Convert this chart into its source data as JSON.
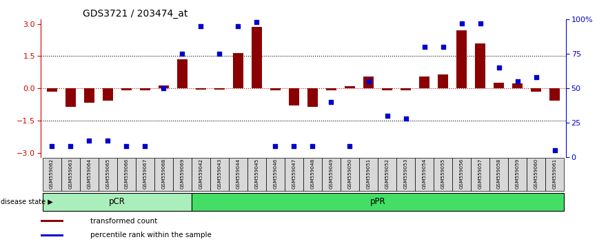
{
  "title": "GDS3721 / 203474_at",
  "samples": [
    "GSM559062",
    "GSM559063",
    "GSM559064",
    "GSM559065",
    "GSM559066",
    "GSM559067",
    "GSM559068",
    "GSM559069",
    "GSM559042",
    "GSM559043",
    "GSM559044",
    "GSM559045",
    "GSM559046",
    "GSM559047",
    "GSM559048",
    "GSM559049",
    "GSM559050",
    "GSM559051",
    "GSM559052",
    "GSM559053",
    "GSM559054",
    "GSM559055",
    "GSM559056",
    "GSM559057",
    "GSM559058",
    "GSM559059",
    "GSM559060",
    "GSM559061"
  ],
  "transformed_count": [
    -0.15,
    -0.85,
    -0.65,
    -0.55,
    -0.08,
    -0.1,
    0.15,
    1.35,
    -0.05,
    -0.05,
    1.65,
    2.85,
    -0.08,
    -0.8,
    -0.85,
    -0.08,
    0.12,
    0.55,
    -0.08,
    -0.08,
    0.55,
    0.65,
    2.7,
    2.1,
    0.28,
    0.25,
    -0.15,
    -0.55
  ],
  "percentile_rank": [
    8,
    8,
    12,
    12,
    8,
    8,
    50,
    75,
    95,
    75,
    95,
    98,
    8,
    8,
    8,
    40,
    8,
    55,
    30,
    28,
    80,
    80,
    97,
    97,
    65,
    55,
    58,
    5
  ],
  "pcr_count": 8,
  "ppr_count": 20,
  "bar_color": "#8B0000",
  "scatter_color": "#0000CC",
  "ylim": [
    -3.2,
    3.2
  ],
  "yticks_left": [
    -3,
    -1.5,
    0,
    1.5,
    3
  ],
  "yticks_right_pct": [
    0,
    25,
    50,
    75,
    100
  ],
  "dotted_lines": [
    1.5,
    -1.5
  ],
  "zero_line_color": "#CC0000",
  "left_axis_color": "#CC0000",
  "right_axis_color": "#0000CC",
  "pcr_color": "#AAEEBB",
  "ppr_color": "#44DD66",
  "label_box_color": "#D8D8D8",
  "background": "#ffffff"
}
